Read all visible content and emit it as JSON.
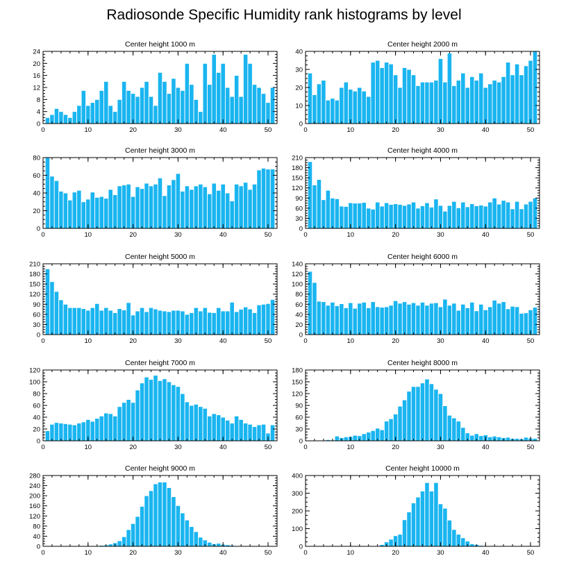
{
  "page_title": "Radiosonde Specific Humidity rank histograms by level",
  "colors": {
    "bar": "#1ab5f0",
    "bar_edge": "#ffffff",
    "axis": "#000000"
  },
  "chart_data": [
    {
      "type": "bar",
      "title": "Center height 1000 m",
      "xlim": [
        0,
        52
      ],
      "xticks": [
        0,
        10,
        20,
        30,
        40,
        50
      ],
      "ylim": [
        0,
        24
      ],
      "yticks": [
        0,
        4,
        8,
        12,
        16,
        20,
        24
      ],
      "values": [
        2,
        3,
        5,
        4,
        3,
        2,
        4,
        6,
        11,
        6,
        7,
        8,
        11,
        14,
        6,
        4,
        8,
        14,
        11,
        10,
        9,
        12,
        14,
        9,
        6,
        17,
        14,
        10,
        15,
        12,
        11,
        20,
        13,
        8,
        4,
        20,
        13,
        23,
        17,
        20,
        12,
        9,
        16,
        9,
        23,
        20,
        13,
        12,
        10,
        7,
        12
      ]
    },
    {
      "type": "bar",
      "title": "Center height 2000 m",
      "xlim": [
        0,
        52
      ],
      "xticks": [
        0,
        10,
        20,
        30,
        40,
        50
      ],
      "ylim": [
        0,
        40
      ],
      "yticks": [
        0,
        10,
        20,
        30,
        40
      ],
      "values": [
        28,
        16,
        22,
        24,
        13,
        14,
        13,
        20,
        23,
        19,
        18,
        20,
        18,
        15,
        34,
        35,
        31,
        34,
        33,
        27,
        20,
        31,
        30,
        27,
        21,
        23,
        23,
        23,
        24,
        36,
        23,
        39,
        21,
        24,
        28,
        20,
        26,
        24,
        28,
        20,
        22,
        24,
        23,
        26,
        34,
        27,
        33,
        27,
        32,
        35,
        40
      ]
    },
    {
      "type": "bar",
      "title": "Center height 3000 m",
      "xlim": [
        0,
        52
      ],
      "xticks": [
        0,
        10,
        20,
        30,
        40,
        50
      ],
      "ylim": [
        0,
        80
      ],
      "yticks": [
        0,
        20,
        40,
        60,
        80
      ],
      "values": [
        80,
        59,
        54,
        42,
        40,
        32,
        41,
        43,
        30,
        33,
        41,
        35,
        36,
        34,
        44,
        38,
        48,
        49,
        50,
        36,
        47,
        45,
        51,
        48,
        50,
        57,
        37,
        49,
        55,
        62,
        42,
        48,
        44,
        48,
        50,
        47,
        39,
        51,
        43,
        50,
        40,
        31,
        50,
        48,
        52,
        44,
        50,
        66,
        68,
        67,
        67
      ]
    },
    {
      "type": "bar",
      "title": "Center height 4000 m",
      "xlim": [
        0,
        52
      ],
      "xticks": [
        0,
        10,
        20,
        30,
        40,
        50
      ],
      "ylim": [
        0,
        210
      ],
      "yticks": [
        0,
        30,
        60,
        90,
        120,
        150,
        180,
        210
      ],
      "values": [
        198,
        129,
        145,
        85,
        113,
        90,
        88,
        66,
        65,
        76,
        75,
        75,
        77,
        60,
        57,
        78,
        66,
        76,
        71,
        73,
        71,
        68,
        72,
        78,
        60,
        67,
        76,
        63,
        87,
        68,
        51,
        68,
        80,
        61,
        78,
        64,
        73,
        67,
        69,
        66,
        78,
        90,
        72,
        83,
        78,
        58,
        80,
        58,
        72,
        80,
        90
      ]
    },
    {
      "type": "bar",
      "title": "Center height 5000 m",
      "xlim": [
        0,
        52
      ],
      "xticks": [
        0,
        10,
        20,
        30,
        40,
        50
      ],
      "ylim": [
        0,
        210
      ],
      "yticks": [
        0,
        30,
        60,
        90,
        120,
        150,
        180,
        210
      ],
      "values": [
        195,
        157,
        128,
        103,
        90,
        80,
        80,
        80,
        77,
        72,
        80,
        92,
        72,
        80,
        72,
        65,
        77,
        73,
        95,
        58,
        70,
        80,
        68,
        80,
        76,
        72,
        70,
        68,
        72,
        72,
        70,
        60,
        65,
        80,
        70,
        80,
        66,
        65,
        80,
        70,
        70,
        96,
        68,
        75,
        82,
        76,
        65,
        88,
        90,
        92,
        104
      ]
    },
    {
      "type": "bar",
      "title": "Center height 6000 m",
      "xlim": [
        0,
        52
      ],
      "xticks": [
        0,
        10,
        20,
        30,
        40,
        50
      ],
      "ylim": [
        0,
        140
      ],
      "yticks": [
        0,
        20,
        40,
        60,
        80,
        100,
        120,
        140
      ],
      "values": [
        125,
        103,
        66,
        65,
        58,
        64,
        57,
        61,
        53,
        63,
        52,
        62,
        64,
        53,
        65,
        55,
        54,
        55,
        58,
        67,
        62,
        65,
        60,
        63,
        58,
        64,
        58,
        62,
        63,
        55,
        70,
        58,
        62,
        48,
        60,
        53,
        64,
        47,
        60,
        49,
        55,
        68,
        62,
        65,
        51,
        56,
        55,
        42,
        43,
        49,
        54
      ]
    },
    {
      "type": "bar",
      "title": "Center height 7000 m",
      "xlim": [
        0,
        52
      ],
      "xticks": [
        0,
        10,
        20,
        30,
        40,
        50
      ],
      "ylim": [
        0,
        120
      ],
      "yticks": [
        0,
        20,
        40,
        60,
        80,
        100,
        120
      ],
      "values": [
        17,
        28,
        31,
        30,
        29,
        28,
        27,
        30,
        32,
        36,
        33,
        38,
        42,
        47,
        46,
        42,
        58,
        65,
        70,
        65,
        86,
        98,
        108,
        104,
        111,
        102,
        105,
        100,
        95,
        92,
        80,
        66,
        60,
        62,
        58,
        55,
        42,
        46,
        44,
        40,
        35,
        30,
        42,
        36,
        30,
        28,
        24,
        27,
        28,
        13,
        27
      ]
    },
    {
      "type": "bar",
      "title": "Center height 8000 m",
      "xlim": [
        0,
        52
      ],
      "xticks": [
        0,
        10,
        20,
        30,
        40,
        50
      ],
      "ylim": [
        0,
        180
      ],
      "yticks": [
        0,
        30,
        60,
        90,
        120,
        150,
        180
      ],
      "values": [
        0,
        0,
        0,
        1,
        3,
        2,
        12,
        8,
        10,
        11,
        14,
        13,
        18,
        22,
        26,
        32,
        28,
        50,
        56,
        68,
        88,
        104,
        126,
        138,
        138,
        147,
        157,
        145,
        131,
        120,
        89,
        65,
        58,
        50,
        34,
        20,
        14,
        18,
        13,
        15,
        10,
        12,
        10,
        8,
        9,
        6,
        6,
        5,
        9,
        7,
        6
      ]
    },
    {
      "type": "bar",
      "title": "Center height 9000 m",
      "xlim": [
        0,
        52
      ],
      "xticks": [
        0,
        10,
        20,
        30,
        40,
        50
      ],
      "ylim": [
        0,
        280
      ],
      "yticks": [
        0,
        40,
        80,
        120,
        160,
        200,
        240,
        280
      ],
      "values": [
        0,
        0,
        0,
        0,
        0,
        0,
        0,
        0,
        0,
        0,
        1,
        1,
        4,
        5,
        9,
        14,
        22,
        38,
        66,
        90,
        118,
        158,
        200,
        220,
        247,
        254,
        254,
        232,
        196,
        161,
        132,
        104,
        78,
        58,
        36,
        25,
        16,
        10,
        12,
        8,
        6,
        4,
        2,
        1,
        0,
        0,
        0,
        0,
        0,
        0,
        0
      ]
    },
    {
      "type": "bar",
      "title": "Center height 10000 m",
      "xlim": [
        0,
        52
      ],
      "xticks": [
        0,
        10,
        20,
        30,
        40,
        50
      ],
      "ylim": [
        0,
        400
      ],
      "yticks": [
        0,
        100,
        200,
        300,
        400
      ],
      "values": [
        0,
        0,
        0,
        0,
        0,
        0,
        0,
        0,
        0,
        0,
        0,
        0,
        0,
        0,
        0,
        3,
        10,
        25,
        40,
        60,
        68,
        150,
        194,
        245,
        278,
        312,
        360,
        312,
        360,
        240,
        215,
        148,
        95,
        68,
        48,
        30,
        14,
        10,
        5,
        3,
        1,
        1,
        0,
        0,
        0,
        0,
        0,
        0,
        0,
        0,
        0
      ]
    }
  ]
}
